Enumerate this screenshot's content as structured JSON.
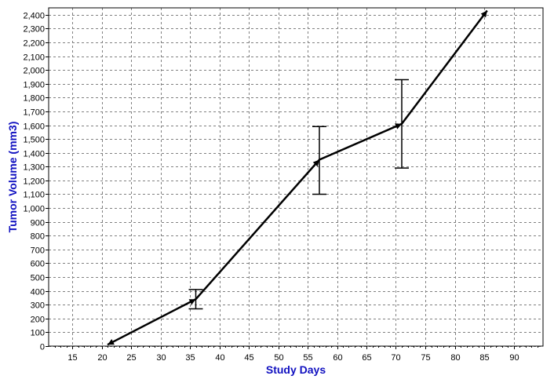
{
  "chart_data": {
    "type": "line",
    "title": "",
    "xlabel": "Study Days",
    "ylabel": "Tumor Volume (mm3)",
    "xlim": [
      11,
      95
    ],
    "ylim": [
      0,
      2450
    ],
    "xticks": [
      15,
      20,
      25,
      30,
      35,
      40,
      45,
      50,
      55,
      60,
      65,
      70,
      75,
      80,
      85,
      90
    ],
    "yticks": [
      0,
      100,
      200,
      300,
      400,
      500,
      600,
      700,
      800,
      900,
      1000,
      1100,
      1200,
      1300,
      1400,
      1500,
      1600,
      1700,
      1800,
      1900,
      2000,
      2100,
      2200,
      2300,
      2400
    ],
    "ytick_labels": [
      "0",
      "100",
      "200",
      "300",
      "400",
      "500",
      "600",
      "700",
      "800",
      "900",
      "1,000",
      "1,100",
      "1,200",
      "1,300",
      "1,400",
      "1,500",
      "1,600",
      "1,700",
      "1,800",
      "1,900",
      "2,000",
      "2,100",
      "2,200",
      "2,300",
      "2,400"
    ],
    "grid": true,
    "legend": "none",
    "series": [
      {
        "x": [
          21,
          36,
          57,
          71,
          85.5
        ],
        "y": [
          10,
          340,
          1350,
          1610,
          2430
        ],
        "error_low": [
          null,
          270,
          1100,
          1290,
          null
        ],
        "error_high": [
          null,
          410,
          1590,
          1930,
          null
        ],
        "color": "#000000"
      }
    ],
    "colors": {
      "axis_title": "#1010c0",
      "grid": "#808080",
      "line": "#000000"
    }
  }
}
